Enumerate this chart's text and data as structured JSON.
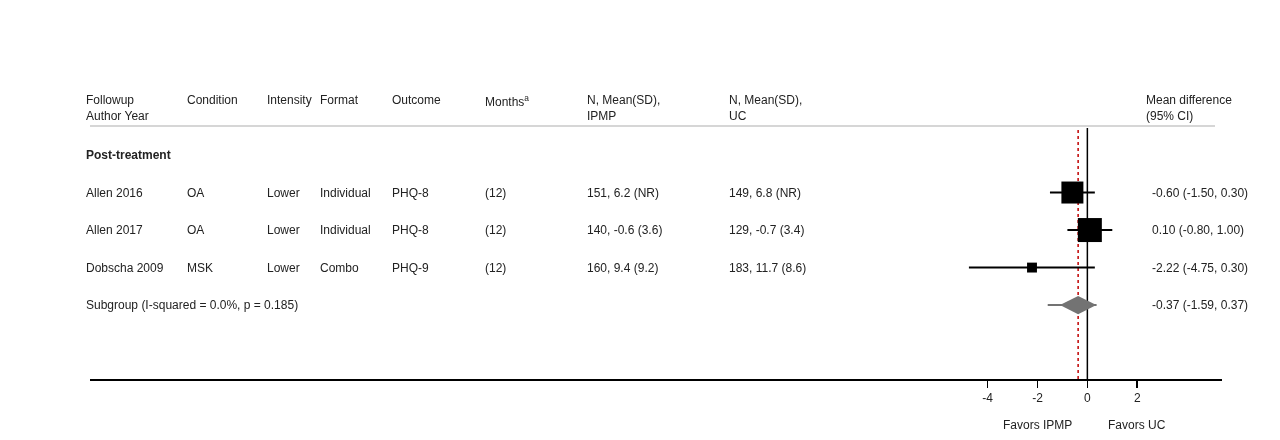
{
  "chart_data": {
    "type": "scatter",
    "orientation": "horizontal",
    "categories": [
      "Post-treatment",
      "Allen 2016",
      "Allen 2017",
      "Dobscha 2009",
      "Subgroup (I-squared = 0.0%, p = 0.185)"
    ],
    "series": [
      {
        "marker": "square",
        "color": "#000000",
        "values": [
          null,
          -0.6,
          0.1,
          -2.22,
          null
        ],
        "errors": [
          null,
          [
            -1.5,
            0.3
          ],
          [
            -0.8,
            1.0
          ],
          [
            -4.75,
            0.3
          ],
          null
        ],
        "sizes": [
          null,
          0.84,
          1,
          0.17,
          null
        ]
      },
      {
        "marker": "diamond",
        "color": "#737373",
        "values": [
          null,
          null,
          null,
          null,
          -0.37
        ],
        "errors": [
          null,
          null,
          null,
          null,
          [
            -1.59,
            0.37
          ]
        ]
      }
    ],
    "annotations": [
      "Followup\nAuthor Year",
      "Condition",
      "Intensity",
      "Format",
      "Outcome",
      "Months$^{a}$",
      "N, Mean(SD),\nIPMP",
      "N, Mean(SD),\nUC",
      "Mean difference\n(95% CI)",
      "OA",
      "Lower",
      "Individual",
      "PHQ-8",
      "(12)",
      "151, 6.2 (NR)",
      "149, 6.8 (NR)",
      "-0.60 (-1.50, 0.30)",
      "OA",
      "Lower",
      "Individual",
      "PHQ-8",
      "(12)",
      "140, -0.6 (3.6)",
      "129, -0.7 (3.4)",
      "0.10 (-0.80, 1.00)",
      "MSK",
      "Lower",
      "Combo",
      "PHQ-9",
      "(12)",
      "160, 9.4 (9.2)",
      "183, 11.7 (8.6)",
      "-2.22 (-4.75, 0.30)",
      "-0.37 (-1.59, 0.37)",
      "Favors IPMP",
      "Favors UC"
    ],
    "xlim": [
      -40,
      5.4
    ],
    "xticks": [
      -4,
      -2,
      0,
      2
    ],
    "ref_lines": [
      {
        "axis": "x",
        "value": 0,
        "color": "#000000",
        "line_style": "solid"
      },
      {
        "axis": "x",
        "value": -0.37,
        "color": "#c00000",
        "line_style": "dotted"
      }
    ],
    "grid": false
  }
}
